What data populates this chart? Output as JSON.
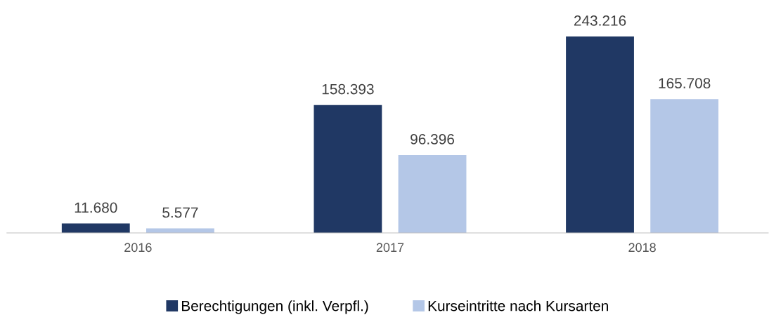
{
  "chart_data": {
    "type": "bar",
    "categories": [
      "2016",
      "2017",
      "2018"
    ],
    "series": [
      {
        "name": "Berechtigungen (inkl. Verpfl.)",
        "color": "#203864",
        "values": [
          11680,
          158393,
          243216
        ],
        "value_labels": [
          "11.680",
          "158.393",
          "243.216"
        ]
      },
      {
        "name": "Kurseintritte nach Kursarten",
        "color": "#b4c7e7",
        "values": [
          5577,
          96396,
          165708
        ],
        "value_labels": [
          "5.577",
          "96.396",
          "165.708"
        ]
      }
    ],
    "legend": "bottom",
    "grid": false
  }
}
